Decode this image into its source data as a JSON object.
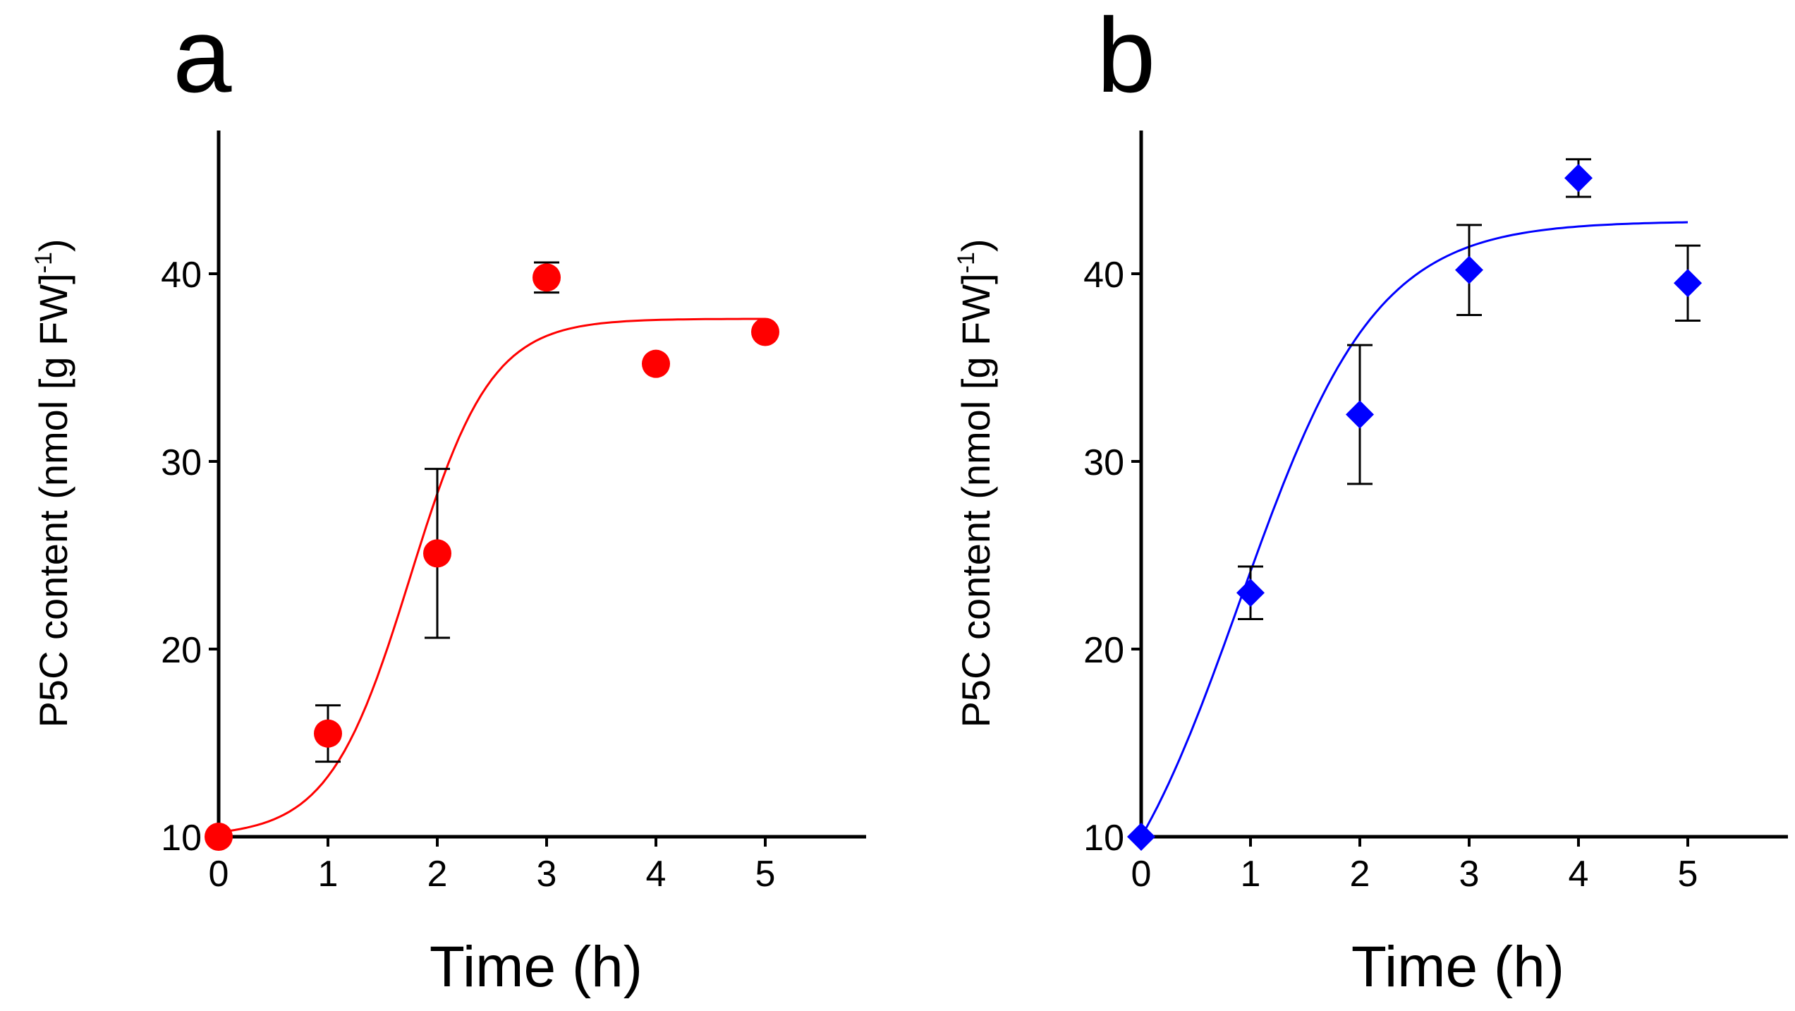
{
  "chart_data": [
    {
      "panel_label": "a",
      "type": "scatter",
      "marker": "circle",
      "color": "#ff0000",
      "fit_color": "#ff0000",
      "fit": {
        "model": "sigmoid",
        "bottom": 10,
        "top": 37.6,
        "x50": 1.75,
        "slope": 2.0
      },
      "xlabel": "Time (h)",
      "ylabel": {
        "main": "P5C content (nmol [g FW]",
        "sup": "-1",
        "close": ")"
      },
      "xlim": [
        0,
        6
      ],
      "ylim": [
        10,
        48
      ],
      "xticks": [
        "0",
        "1",
        "2",
        "3",
        "4",
        "5"
      ],
      "yticks": [
        "10",
        "20",
        "30",
        "40"
      ],
      "points": [
        {
          "x": 0,
          "y": 10.0,
          "err": 0
        },
        {
          "x": 1,
          "y": 15.5,
          "err": 1.5
        },
        {
          "x": 2,
          "y": 25.1,
          "err": 4.5
        },
        {
          "x": 3,
          "y": 39.8,
          "err": 0.8
        },
        {
          "x": 4,
          "y": 35.2,
          "err": 0
        },
        {
          "x": 5,
          "y": 36.9,
          "err": 0
        }
      ]
    },
    {
      "panel_label": "b",
      "type": "scatter",
      "marker": "diamond",
      "color": "#0000ff",
      "fit_color": "#0000ff",
      "fit": {
        "model": "logistic",
        "bottom": 10,
        "top": 42.8,
        "k": 1.6,
        "x0": 0.9
      },
      "xlabel": "Time (h)",
      "ylabel": {
        "main": "P5C content (nmol [g FW]",
        "sup": "-1",
        "close": ")"
      },
      "xlim": [
        0,
        6
      ],
      "ylim": [
        10,
        48
      ],
      "xticks": [
        "0",
        "1",
        "2",
        "3",
        "4",
        "5"
      ],
      "yticks": [
        "10",
        "20",
        "30",
        "40"
      ],
      "points": [
        {
          "x": 0,
          "y": 10.0,
          "err": 0
        },
        {
          "x": 1,
          "y": 23.0,
          "err": 1.4
        },
        {
          "x": 2,
          "y": 32.5,
          "err": 3.7
        },
        {
          "x": 3,
          "y": 40.2,
          "err": 2.4
        },
        {
          "x": 4,
          "y": 45.1,
          "err": 1.0
        },
        {
          "x": 5,
          "y": 39.5,
          "err": 2.0
        }
      ]
    }
  ]
}
